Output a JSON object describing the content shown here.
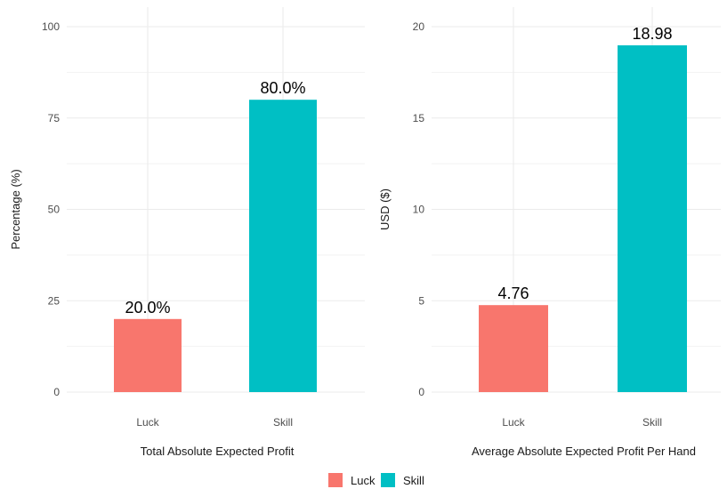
{
  "chart_data": [
    {
      "type": "bar",
      "categories": [
        "Luck",
        "Skill"
      ],
      "values": [
        20.0,
        80.0
      ],
      "value_labels": [
        "20.0%",
        "80.0%"
      ],
      "colors": [
        "#F8766D",
        "#00BFC4"
      ],
      "xlabel": "Total Absolute Expected Profit",
      "ylabel": "Percentage (%)",
      "ylim": [
        0,
        100
      ],
      "yticks": [
        0,
        25,
        50,
        75,
        100
      ],
      "ytick_labels": [
        "0",
        "25",
        "50",
        "75",
        "100"
      ],
      "grid": true
    },
    {
      "type": "bar",
      "categories": [
        "Luck",
        "Skill"
      ],
      "values": [
        4.76,
        18.98
      ],
      "value_labels": [
        "4.76",
        "18.98"
      ],
      "colors": [
        "#F8766D",
        "#00BFC4"
      ],
      "xlabel": "Average Absolute Expected Profit Per Hand",
      "ylabel": "USD ($)",
      "ylim": [
        0,
        20
      ],
      "yticks": [
        0,
        5,
        10,
        15,
        20
      ],
      "ytick_labels": [
        "0",
        "5",
        "10",
        "15",
        "20"
      ],
      "grid": true
    }
  ],
  "legend": {
    "position": "bottom",
    "items": [
      {
        "label": "Luck",
        "color": "#F8766D"
      },
      {
        "label": "Skill",
        "color": "#00BFC4"
      }
    ]
  }
}
